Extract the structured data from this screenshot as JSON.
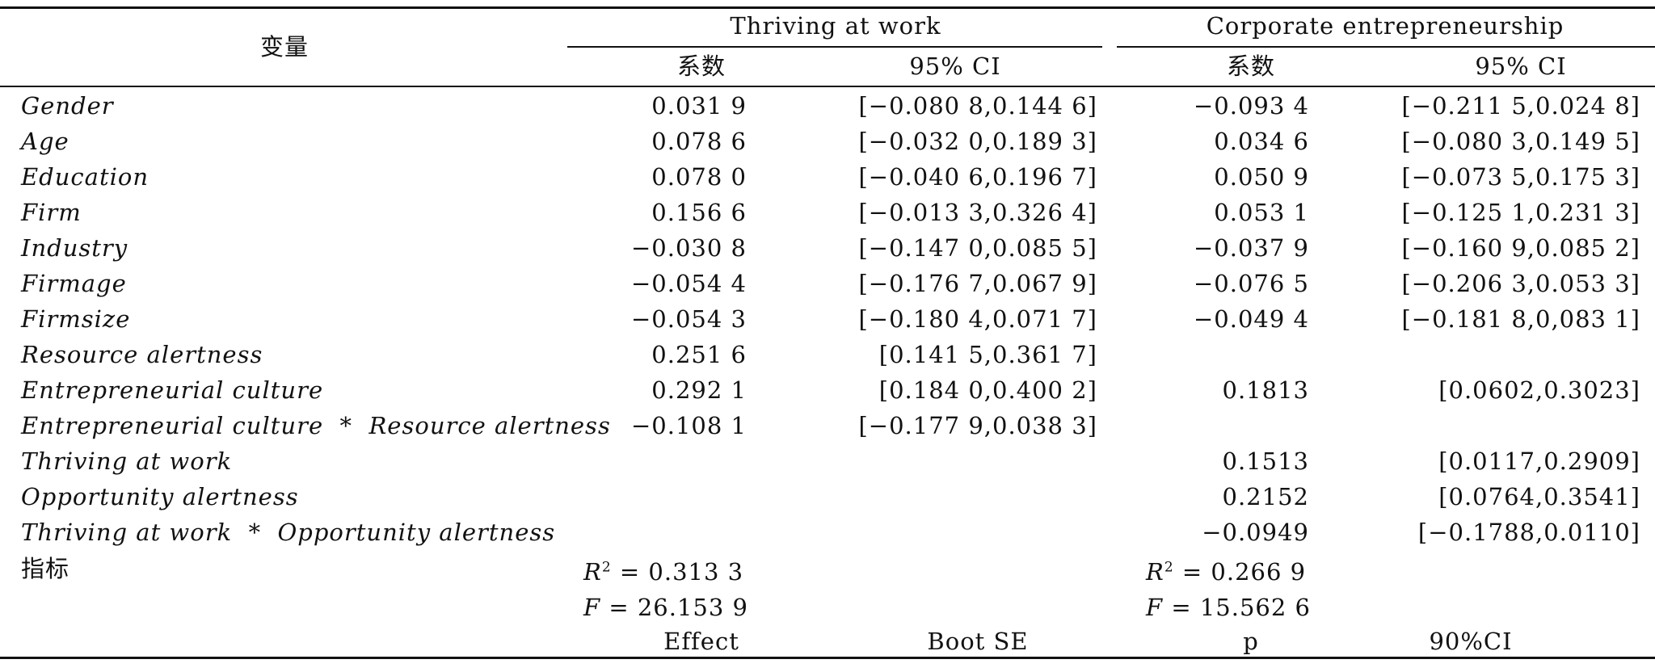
{
  "header": {
    "variable": "变量",
    "group1": "Thriving at work",
    "group2": "Corporate entrepreneurship",
    "coef": "系数",
    "ci": "95% CI"
  },
  "rows": [
    {
      "label": "Gender",
      "c1": "0.031 9",
      "ci1": "[−0.080 8,0.144 6]",
      "c2": "−0.093 4",
      "ci2": "[−0.211 5,0.024 8]"
    },
    {
      "label": "Age",
      "c1": "0.078 6",
      "ci1": "[−0.032 0,0.189 3]",
      "c2": "0.034 6",
      "ci2": "[−0.080 3,0.149 5]"
    },
    {
      "label": "Education",
      "c1": "0.078 0",
      "ci1": "[−0.040 6,0.196 7]",
      "c2": "0.050 9",
      "ci2": "[−0.073 5,0.175 3]"
    },
    {
      "label": "Firm",
      "c1": "0.156 6",
      "ci1": "[−0.013 3,0.326 4]",
      "c2": "0.053 1",
      "ci2": "[−0.125 1,0.231 3]"
    },
    {
      "label": "Industry",
      "c1": "−0.030 8",
      "ci1": "[−0.147 0,0.085 5]",
      "c2": "−0.037 9",
      "ci2": "[−0.160 9,0.085 2]"
    },
    {
      "label": "Firmage",
      "c1": "−0.054 4",
      "ci1": "[−0.176 7,0.067 9]",
      "c2": "−0.076 5",
      "ci2": "[−0.206 3,0.053 3]"
    },
    {
      "label": "Firmsize",
      "c1": "−0.054 3",
      "ci1": "[−0.180 4,0.071 7]",
      "c2": "−0.049 4",
      "ci2": "[−0.181 8,0,083 1]"
    },
    {
      "label": "Resource alertness",
      "c1": "0.251 6",
      "ci1": "[0.141 5,0.361 7]",
      "c2": "",
      "ci2": ""
    },
    {
      "label": "Entrepreneurial culture",
      "c1": "0.292 1",
      "ci1": "[0.184 0,0.400 2]",
      "c2": "0.1813",
      "ci2": "[0.0602,0.3023]"
    },
    {
      "label": "Entrepreneurial culture  *  Resource alertness",
      "c1": "−0.108 1",
      "ci1": "[−0.177 9,0.038 3]",
      "c2": "",
      "ci2": ""
    },
    {
      "label": "Thriving at work",
      "c1": "",
      "ci1": "",
      "c2": "0.1513",
      "ci2": "[0.0117,0.2909]"
    },
    {
      "label": "Opportunity alertness",
      "c1": "",
      "ci1": "",
      "c2": "0.2152",
      "ci2": "[0.0764,0.3541]"
    },
    {
      "label": "Thriving at work  *  Opportunity alertness",
      "c1": "",
      "ci1": "",
      "c2": "−0.0949",
      "ci2": "[−0.1788,0.0110]"
    }
  ],
  "indicators": {
    "label": "指标",
    "r2_1": "= 0.313 3",
    "r2_2": "= 0.266 9",
    "f_1": "= 26.153 9",
    "f_2": "= 15.562 6",
    "r_letter": "R",
    "r_sup": "2",
    "f_letter": "F"
  },
  "footer": {
    "effect": "Effect",
    "boot_se": "Boot SE",
    "p": "p",
    "ci90": "90%CI"
  }
}
